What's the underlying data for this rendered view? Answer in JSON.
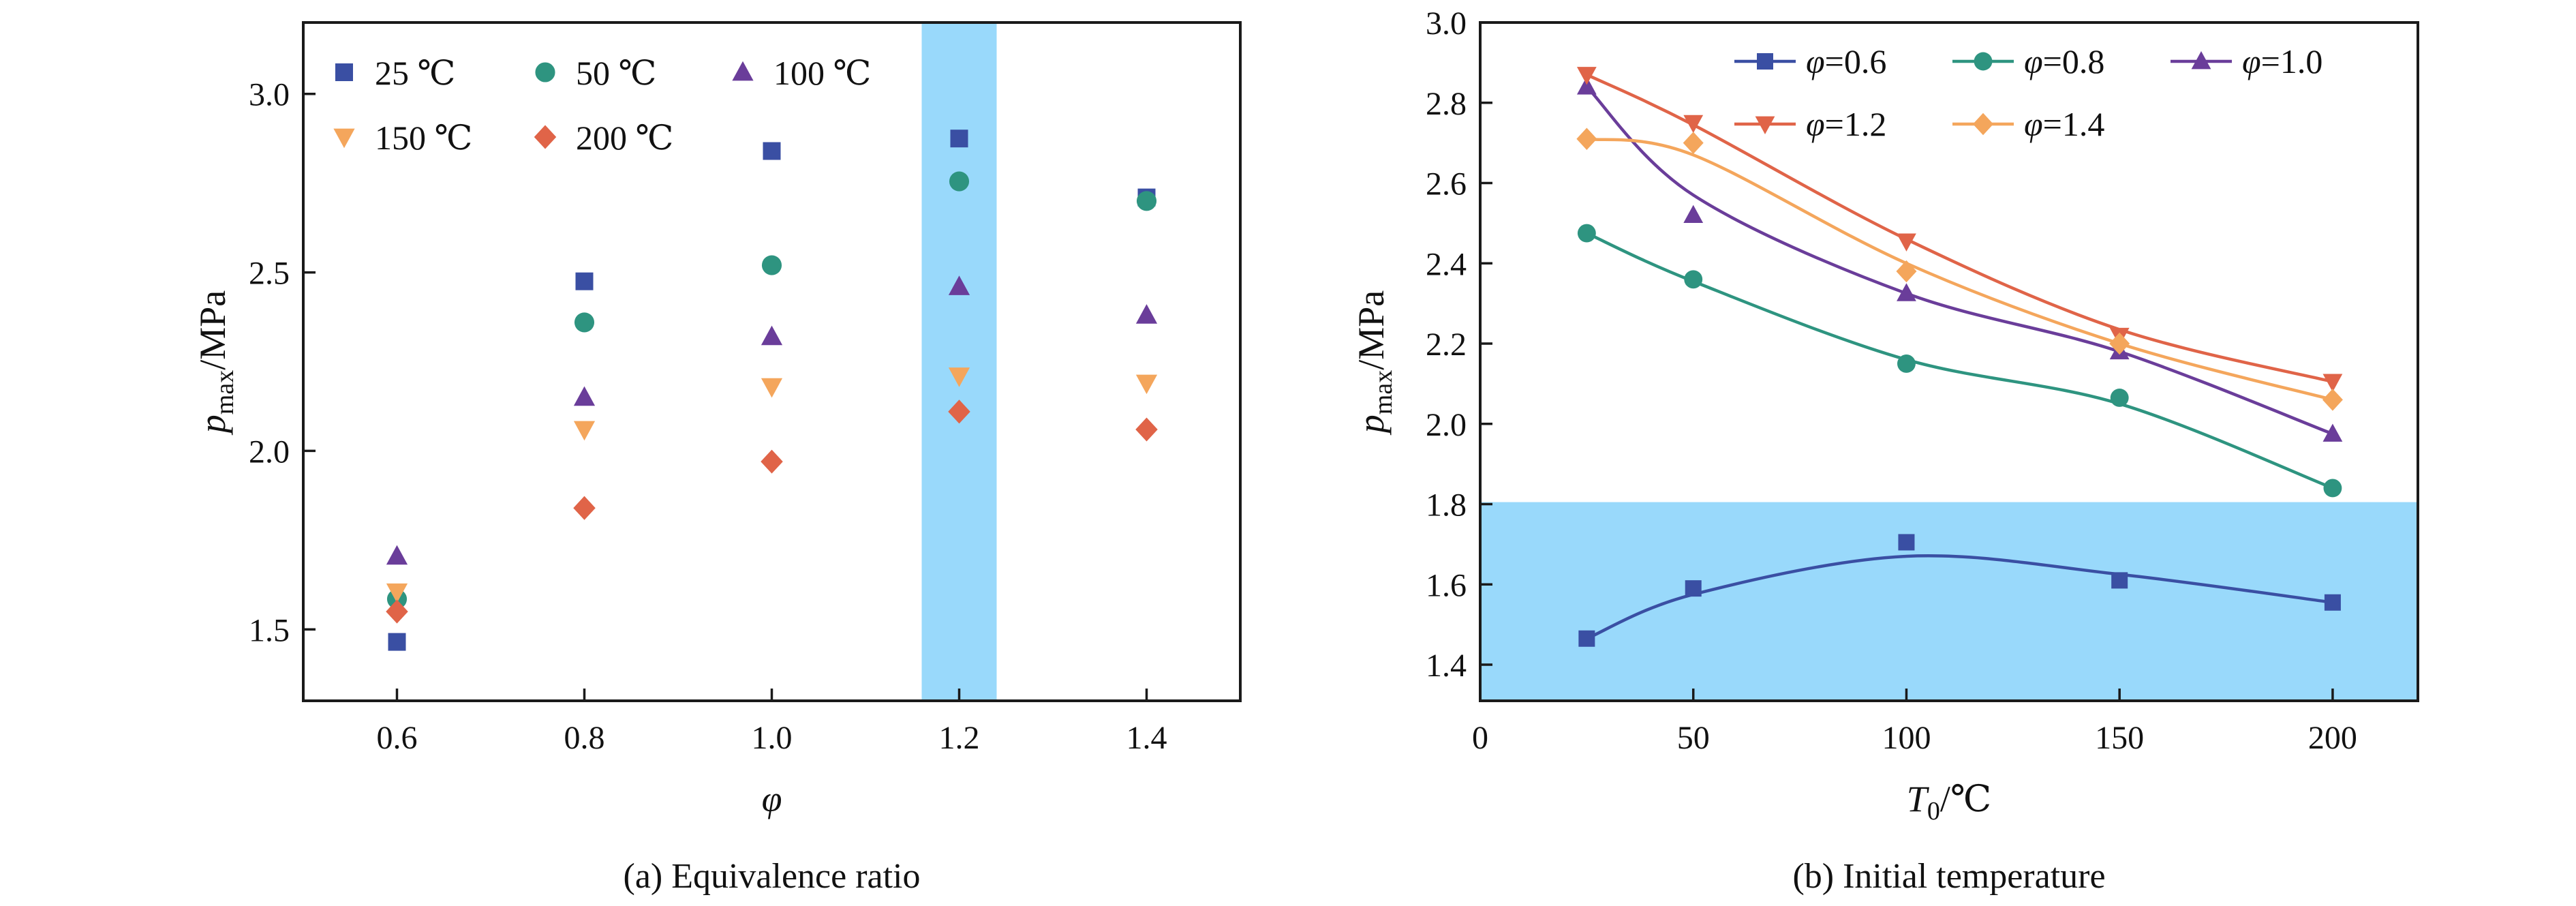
{
  "chart_data": [
    {
      "type": "scatter",
      "panel_caption": "(a) Equivalence ratio",
      "xlabel": "φ",
      "ylabel": {
        "main": "p",
        "sub": "max",
        "unit": "/MPa"
      },
      "xlim": [
        0.5,
        1.5
      ],
      "ylim": [
        1.3,
        3.2
      ],
      "xticks": [
        "0.6",
        "0.8",
        "1.0",
        "1.2",
        "1.4"
      ],
      "yticks": [
        "1.5",
        "2.0",
        "2.5",
        "3.0"
      ],
      "highlight_x_range": [
        1.16,
        1.24
      ],
      "legend_placement": "top-left",
      "series": [
        {
          "name": "25 ℃",
          "color": "#3a4fa3",
          "marker": "square",
          "x": [
            0.6,
            0.8,
            1.0,
            1.2,
            1.4
          ],
          "y": [
            1.465,
            2.475,
            2.84,
            2.875,
            2.71
          ]
        },
        {
          "name": "50 ℃",
          "color": "#2e9480",
          "marker": "circle",
          "x": [
            0.6,
            0.8,
            1.0,
            1.2,
            1.4
          ],
          "y": [
            1.585,
            2.36,
            2.52,
            2.755,
            2.7
          ]
        },
        {
          "name": "100 ℃",
          "color": "#6a3d9a",
          "marker": "triangle-up",
          "x": [
            0.6,
            0.8,
            1.0,
            1.2,
            1.4
          ],
          "y": [
            1.705,
            2.15,
            2.32,
            2.46,
            2.38
          ]
        },
        {
          "name": "150 ℃",
          "color": "#f4a65c",
          "marker": "triangle-down",
          "x": [
            0.6,
            0.8,
            1.0,
            1.2,
            1.4
          ],
          "y": [
            1.605,
            2.06,
            2.18,
            2.21,
            2.19
          ]
        },
        {
          "name": "200 ℃",
          "color": "#e06448",
          "marker": "diamond",
          "x": [
            0.6,
            0.8,
            1.0,
            1.2,
            1.4
          ],
          "y": [
            1.55,
            1.84,
            1.97,
            2.11,
            2.06
          ]
        }
      ]
    },
    {
      "type": "line",
      "panel_caption": "(b) Initial temperature",
      "xlabel": {
        "main": "T",
        "sub": "0",
        "unit": "/℃"
      },
      "ylabel": {
        "main": "p",
        "sub": "max",
        "unit": "/MPa"
      },
      "xlim": [
        0,
        220
      ],
      "ylim": [
        1.31,
        3.0
      ],
      "xticks": [
        "0",
        "50",
        "100",
        "150",
        "200"
      ],
      "yticks": [
        "1.4",
        "1.6",
        "1.8",
        "2.0",
        "2.2",
        "2.4",
        "2.6",
        "2.8",
        "3.0"
      ],
      "highlight_y_range": [
        1.31,
        1.805
      ],
      "legend_placement": "top-right",
      "x": [
        25,
        50,
        100,
        150,
        200
      ],
      "series": [
        {
          "name": "=0.6",
          "color": "#3a4fa3",
          "marker": "square",
          "y": [
            1.465,
            1.59,
            1.705,
            1.61,
            1.555
          ],
          "fit": [
            1.465,
            1.575,
            1.67,
            1.625,
            1.555
          ]
        },
        {
          "name": "=0.8",
          "color": "#2e9480",
          "marker": "circle",
          "y": [
            2.475,
            2.36,
            2.15,
            2.065,
            1.84
          ],
          "fit": [
            2.475,
            2.355,
            2.16,
            2.05,
            1.84
          ]
        },
        {
          "name": "=1.0",
          "color": "#6a3d9a",
          "marker": "triangle-up",
          "y": [
            2.84,
            2.52,
            2.325,
            2.18,
            1.975
          ],
          "fit": [
            2.84,
            2.57,
            2.325,
            2.18,
            1.975
          ]
        },
        {
          "name": "=1.2",
          "color": "#e06448",
          "marker": "triangle-down",
          "y": [
            2.87,
            2.75,
            2.455,
            2.22,
            2.105
          ],
          "fit": [
            2.87,
            2.745,
            2.46,
            2.235,
            2.105
          ]
        },
        {
          "name": "=1.4",
          "color": "#f4a65c",
          "marker": "diamond",
          "y": [
            2.71,
            2.7,
            2.38,
            2.2,
            2.06
          ],
          "fit": [
            2.71,
            2.67,
            2.4,
            2.2,
            2.06
          ]
        }
      ],
      "legend_symbol": "φ"
    }
  ],
  "colors": {
    "highlight": "#99d9fb",
    "frame": "#1a1a1a"
  }
}
